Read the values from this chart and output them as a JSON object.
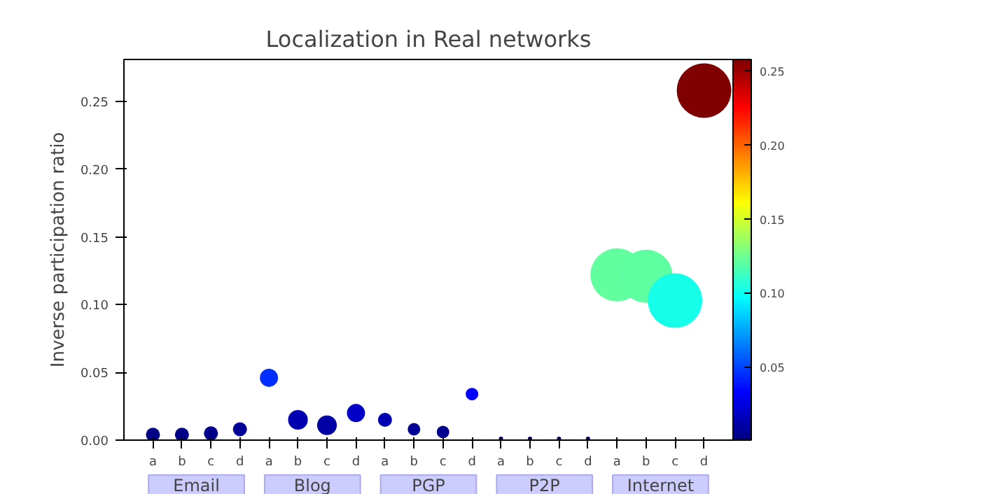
{
  "chart_data": {
    "type": "bubble",
    "title": "Localization in Real networks",
    "ylabel": "Inverse participation ratio",
    "categories": [
      "a",
      "b",
      "c",
      "d",
      "a",
      "b",
      "c",
      "d",
      "a",
      "b",
      "c",
      "d",
      "a",
      "b",
      "c",
      "d",
      "a",
      "b",
      "c",
      "d"
    ],
    "values": [
      0.004,
      0.004,
      0.005,
      0.008,
      0.046,
      0.015,
      0.011,
      0.02,
      0.015,
      0.008,
      0.006,
      0.034,
      0.001,
      0.001,
      0.001,
      0.001,
      0.122,
      0.121,
      0.103,
      0.258
    ],
    "cvalues": [
      0.004,
      0.004,
      0.005,
      0.008,
      0.046,
      0.015,
      0.011,
      0.02,
      0.015,
      0.008,
      0.006,
      0.034,
      0.001,
      0.001,
      0.001,
      0.001,
      0.122,
      0.121,
      0.103,
      0.258
    ],
    "sizes": [
      0.066,
      0.066,
      0.066,
      0.066,
      0.11,
      0.13,
      0.13,
      0.11,
      0.066,
      0.053,
      0.053,
      0.053,
      0.006,
      0.006,
      0.006,
      0.006,
      0.95,
      0.95,
      1,
      1
    ],
    "clim": [
      0.001,
      0.258
    ],
    "cticks": [
      {
        "value": 0.05,
        "label": "0.05"
      },
      {
        "value": 0.1,
        "label": "0.10"
      },
      {
        "value": 0.15,
        "label": "0.15"
      },
      {
        "value": 0.2,
        "label": "0.20"
      },
      {
        "value": 0.25,
        "label": "0.25"
      }
    ],
    "ylim": [
      0,
      0.281
    ],
    "yticks": [
      {
        "value": 0,
        "label": "0.00"
      },
      {
        "value": 0.05,
        "label": "0.05"
      },
      {
        "value": 0.1,
        "label": "0.10"
      },
      {
        "value": 0.15,
        "label": "0.15"
      },
      {
        "value": 0.2,
        "label": "0.20"
      },
      {
        "value": 0.25,
        "label": "0.25"
      }
    ],
    "annotations": [
      "Email",
      "Blog",
      "PGP",
      "P2P",
      "Internet"
    ],
    "grid": false
  }
}
